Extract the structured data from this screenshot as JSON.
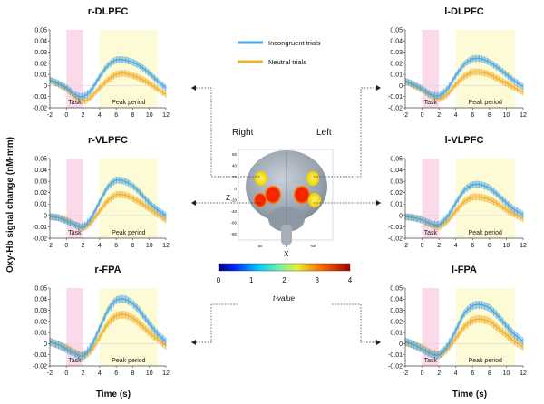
{
  "figure": {
    "ylabel": "Oxy-Hb signal change (nM·mm)",
    "xlabel": "Time (s)",
    "right_label": "Right",
    "left_label": "Left",
    "colorbar_label": "t-value",
    "colorbar_ticks": [
      "0",
      "1",
      "2",
      "3",
      "4"
    ],
    "brain_axis_z": "Z",
    "brain_axis_x": "X",
    "brain_z_ticks": [
      "60",
      "40",
      "20",
      "0",
      "-20",
      "-40",
      "-60",
      "-80"
    ],
    "brain_x_ticks": [
      "50",
      "0",
      "-50"
    ],
    "legend": [
      {
        "name": "Incongruent trials",
        "color": "#4da6e0"
      },
      {
        "name": "Neutral trials",
        "color": "#f0b030"
      }
    ],
    "colors": {
      "task_band": "#fbd9ea",
      "peak_band": "#fdfbd6",
      "incongruent": "#4da6e0",
      "neutral": "#f0b030"
    }
  },
  "chart_data": [
    {
      "type": "line",
      "title": "r-DLPFC",
      "task_label": "Task",
      "peak_label": "Peak period",
      "task_range": [
        0,
        2
      ],
      "peak_range": [
        4,
        11
      ],
      "xlim": [
        -2,
        12
      ],
      "ylim": [
        -0.02,
        0.05
      ],
      "x_ticks": [
        "-2",
        "0",
        "2",
        "4",
        "6",
        "8",
        "10",
        "12"
      ],
      "y_ticks": [
        "-0.02",
        "-0.01",
        "0",
        "0.01",
        "0.02",
        "0.03",
        "0.04",
        "0.05"
      ],
      "x": [
        -2,
        -1,
        0,
        1,
        2,
        3,
        4,
        5,
        6,
        7,
        8,
        9,
        10,
        11,
        12
      ],
      "series": [
        {
          "name": "Incongruent trials",
          "values": [
            0.005,
            0.002,
            -0.002,
            -0.008,
            -0.01,
            -0.004,
            0.008,
            0.018,
            0.023,
            0.023,
            0.021,
            0.017,
            0.011,
            0.004,
            -0.002
          ],
          "err": 0.003
        },
        {
          "name": "Neutral trials",
          "values": [
            0.005,
            0.001,
            -0.003,
            -0.01,
            -0.014,
            -0.01,
            -0.002,
            0.005,
            0.01,
            0.011,
            0.009,
            0.006,
            0.002,
            -0.003,
            -0.008
          ],
          "err": 0.003
        }
      ]
    },
    {
      "type": "line",
      "title": "r-VLPFC",
      "task_label": "Task",
      "peak_label": "Peak period",
      "task_range": [
        0,
        2
      ],
      "peak_range": [
        4,
        11
      ],
      "xlim": [
        -2,
        12
      ],
      "ylim": [
        -0.02,
        0.05
      ],
      "x_ticks": [
        "-2",
        "0",
        "2",
        "4",
        "6",
        "8",
        "10",
        "12"
      ],
      "y_ticks": [
        "-0.02",
        "-0.01",
        "0",
        "0.01",
        "0.02",
        "0.03",
        "0.04",
        "0.05"
      ],
      "x": [
        -2,
        -1,
        0,
        1,
        2,
        3,
        4,
        5,
        6,
        7,
        8,
        9,
        10,
        11,
        12
      ],
      "series": [
        {
          "name": "Incongruent trials",
          "values": [
            -0.001,
            -0.002,
            -0.005,
            -0.008,
            -0.01,
            -0.002,
            0.012,
            0.025,
            0.031,
            0.03,
            0.026,
            0.019,
            0.011,
            0.005,
            0.0
          ],
          "err": 0.003
        },
        {
          "name": "Neutral trials",
          "values": [
            -0.001,
            -0.002,
            -0.004,
            -0.008,
            -0.011,
            -0.006,
            0.004,
            0.013,
            0.018,
            0.018,
            0.015,
            0.011,
            0.006,
            0.001,
            -0.004
          ],
          "err": 0.003
        }
      ]
    },
    {
      "type": "line",
      "title": "r-FPA",
      "task_label": "Task",
      "peak_label": "Peak period",
      "task_range": [
        0,
        2
      ],
      "peak_range": [
        4,
        11
      ],
      "xlim": [
        -2,
        12
      ],
      "ylim": [
        -0.02,
        0.05
      ],
      "x_ticks": [
        "-2",
        "0",
        "2",
        "4",
        "6",
        "8",
        "10",
        "12"
      ],
      "y_ticks": [
        "-0.02",
        "-0.01",
        "0",
        "0.01",
        "0.02",
        "0.03",
        "0.04",
        "0.05"
      ],
      "x": [
        -2,
        -1,
        0,
        1,
        2,
        3,
        4,
        5,
        6,
        7,
        8,
        9,
        10,
        11,
        12
      ],
      "series": [
        {
          "name": "Incongruent trials",
          "values": [
            0.002,
            -0.001,
            -0.005,
            -0.009,
            -0.011,
            -0.002,
            0.014,
            0.03,
            0.039,
            0.04,
            0.036,
            0.028,
            0.018,
            0.009,
            0.002
          ],
          "err": 0.0035
        },
        {
          "name": "Neutral trials",
          "values": [
            0.001,
            -0.001,
            -0.004,
            -0.008,
            -0.011,
            -0.006,
            0.006,
            0.018,
            0.025,
            0.026,
            0.023,
            0.017,
            0.01,
            0.004,
            -0.002
          ],
          "err": 0.0035
        }
      ]
    },
    {
      "type": "line",
      "title": "l-DLPFC",
      "task_label": "Task",
      "peak_label": "Peak period",
      "task_range": [
        0,
        2
      ],
      "peak_range": [
        4,
        11
      ],
      "xlim": [
        -2,
        12
      ],
      "ylim": [
        -0.02,
        0.05
      ],
      "x_ticks": [
        "-2",
        "0",
        "2",
        "4",
        "6",
        "8",
        "10",
        "12"
      ],
      "y_ticks": [
        "-0.02",
        "-0.01",
        "0",
        "0.01",
        "0.02",
        "0.03",
        "0.04",
        "0.05"
      ],
      "x": [
        -2,
        -1,
        0,
        1,
        2,
        3,
        4,
        5,
        6,
        7,
        8,
        9,
        10,
        11,
        12
      ],
      "series": [
        {
          "name": "Incongruent trials",
          "values": [
            0.004,
            0.001,
            -0.003,
            -0.008,
            -0.009,
            -0.003,
            0.009,
            0.019,
            0.024,
            0.024,
            0.021,
            0.016,
            0.01,
            0.004,
            -0.001
          ],
          "err": 0.003
        },
        {
          "name": "Neutral trials",
          "values": [
            0.004,
            0.0,
            -0.004,
            -0.009,
            -0.012,
            -0.008,
            0.001,
            0.008,
            0.012,
            0.012,
            0.01,
            0.006,
            0.002,
            -0.002,
            -0.006
          ],
          "err": 0.003
        }
      ]
    },
    {
      "type": "line",
      "title": "l-VLPFC",
      "task_label": "Task",
      "peak_label": "Peak period",
      "task_range": [
        0,
        2
      ],
      "peak_range": [
        4,
        11
      ],
      "xlim": [
        -2,
        12
      ],
      "ylim": [
        -0.02,
        0.05
      ],
      "x_ticks": [
        "-2",
        "0",
        "2",
        "4",
        "6",
        "8",
        "10",
        "12"
      ],
      "y_ticks": [
        "-0.02",
        "-0.01",
        "0",
        "0.01",
        "0.02",
        "0.03",
        "0.04",
        "0.05"
      ],
      "x": [
        -2,
        -1,
        0,
        1,
        2,
        3,
        4,
        5,
        6,
        7,
        8,
        9,
        10,
        11,
        12
      ],
      "series": [
        {
          "name": "Incongruent trials",
          "values": [
            -0.001,
            -0.002,
            -0.004,
            -0.007,
            -0.008,
            -0.001,
            0.011,
            0.022,
            0.027,
            0.027,
            0.024,
            0.018,
            0.011,
            0.005,
            0.001
          ],
          "err": 0.003
        },
        {
          "name": "Neutral trials",
          "values": [
            -0.001,
            -0.002,
            -0.004,
            -0.008,
            -0.01,
            -0.005,
            0.004,
            0.012,
            0.016,
            0.016,
            0.014,
            0.01,
            0.005,
            0.001,
            -0.003
          ],
          "err": 0.003
        }
      ]
    },
    {
      "type": "line",
      "title": "l-FPA",
      "task_label": "Task",
      "peak_label": "Peak period",
      "task_range": [
        0,
        2
      ],
      "peak_range": [
        4,
        11
      ],
      "xlim": [
        -2,
        12
      ],
      "ylim": [
        -0.02,
        0.05
      ],
      "x_ticks": [
        "-2",
        "0",
        "2",
        "4",
        "6",
        "8",
        "10",
        "12"
      ],
      "y_ticks": [
        "-0.02",
        "-0.01",
        "0",
        "0.01",
        "0.02",
        "0.03",
        "0.04",
        "0.05"
      ],
      "x": [
        -2,
        -1,
        0,
        1,
        2,
        3,
        4,
        5,
        6,
        7,
        8,
        9,
        10,
        11,
        12
      ],
      "series": [
        {
          "name": "Incongruent trials",
          "values": [
            0.002,
            -0.001,
            -0.005,
            -0.009,
            -0.01,
            -0.002,
            0.012,
            0.027,
            0.034,
            0.035,
            0.032,
            0.025,
            0.016,
            0.008,
            0.002
          ],
          "err": 0.0035
        },
        {
          "name": "Neutral trials",
          "values": [
            0.001,
            -0.001,
            -0.004,
            -0.008,
            -0.01,
            -0.005,
            0.005,
            0.015,
            0.021,
            0.022,
            0.02,
            0.014,
            0.008,
            0.002,
            -0.003
          ],
          "err": 0.0035
        }
      ]
    }
  ]
}
